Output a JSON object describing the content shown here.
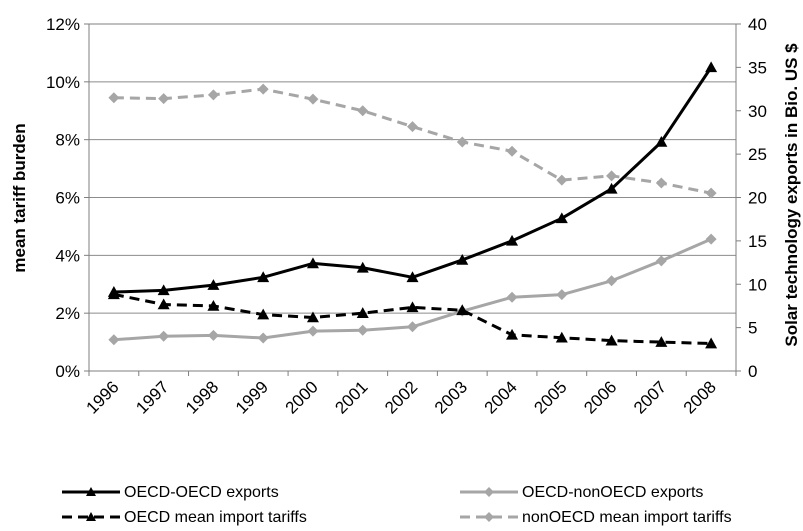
{
  "chart_data": {
    "type": "line",
    "title": "",
    "xlabel": "",
    "ylabel_left": "mean tariff burden",
    "ylabel_right": "Solar technology exports in Bio. US $",
    "categories": [
      "1996",
      "1997",
      "1998",
      "1999",
      "2000",
      "2001",
      "2002",
      "2003",
      "2004",
      "2005",
      "2006",
      "2007",
      "2008"
    ],
    "y_left": {
      "min": 0,
      "max": 12,
      "step": 2,
      "unit": "%"
    },
    "y_right": {
      "min": 0,
      "max": 40,
      "step": 5
    },
    "grid": true,
    "legend_position": "bottom",
    "series": [
      {
        "name": "OECD-OECD exports",
        "axis": "right",
        "color": "#000000",
        "dashed": false,
        "marker": "triangle",
        "values": [
          9.1,
          9.3,
          9.9,
          10.8,
          12.4,
          11.9,
          10.8,
          12.8,
          15.0,
          17.6,
          21.0,
          26.4,
          35.0
        ]
      },
      {
        "name": "OECD-nonOECD exports",
        "axis": "right",
        "color": "#a6a6a6",
        "dashed": false,
        "marker": "diamond",
        "values": [
          3.6,
          4.0,
          4.1,
          3.8,
          4.6,
          4.7,
          5.1,
          6.9,
          8.5,
          8.8,
          10.4,
          12.7,
          15.2
        ]
      },
      {
        "name": "OECD mean import tariffs",
        "axis": "left",
        "color": "#000000",
        "dashed": true,
        "marker": "triangle",
        "values": [
          2.65,
          2.3,
          2.25,
          1.95,
          1.85,
          2.0,
          2.2,
          2.1,
          1.25,
          1.15,
          1.05,
          1.0,
          0.95
        ]
      },
      {
        "name": "nonOECD mean import tariffs",
        "axis": "left",
        "color": "#a6a6a6",
        "dashed": true,
        "marker": "diamond",
        "values": [
          9.45,
          9.42,
          9.55,
          9.75,
          9.4,
          9.0,
          8.45,
          7.92,
          7.6,
          6.6,
          6.75,
          6.5,
          6.15
        ]
      }
    ]
  }
}
